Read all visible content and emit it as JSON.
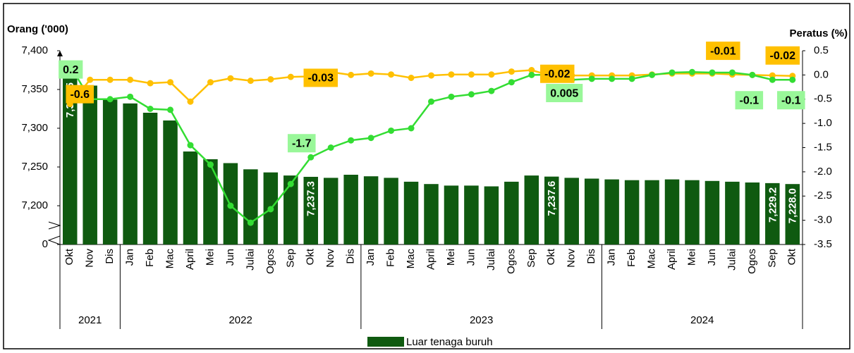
{
  "chart_data": {
    "type": "bar_line",
    "y_title": "Orang ('000)",
    "y2_title": "Peratus (%)",
    "categories": [
      "Okt",
      "Nov",
      "Dis",
      "Jan",
      "Feb",
      "Mac",
      "April",
      "Mei",
      "Jun",
      "Julai",
      "Ogos",
      "Sep",
      "Okt",
      "Nov",
      "Dis",
      "Jan",
      "Feb",
      "Mac",
      "April",
      "Mei",
      "Jun",
      "Julai",
      "Ogos",
      "Sep",
      "Okt",
      "Nov",
      "Dis",
      "Jan",
      "Feb",
      "Mac",
      "April",
      "Mei",
      "Jun",
      "Julai",
      "Ogos",
      "Sep",
      "Okt"
    ],
    "category_groups": [
      {
        "label": "2021",
        "count": 3
      },
      {
        "label": "2022",
        "count": 12
      },
      {
        "label": "2023",
        "count": 12
      },
      {
        "label": "2024",
        "count": 10
      }
    ],
    "ylim": [
      0,
      7400
    ],
    "yticks": [
      0,
      {
        "value": 7200,
        "label": "7,200"
      },
      {
        "value": 7250,
        "label": "7,250"
      },
      {
        "value": 7300,
        "label": "7,300"
      },
      {
        "value": 7350,
        "label": "7,350"
      },
      {
        "value": 7400,
        "label": "7,400"
      }
    ],
    "axis_break": true,
    "y2lim": [
      -3.5,
      0.5
    ],
    "y2ticks": [
      0.5,
      {
        "value": 0,
        "label": "0.0"
      },
      -0.5,
      {
        "value": -1,
        "label": "-1.0"
      },
      -1.5,
      {
        "value": -2,
        "label": "-2.0"
      },
      -2.5,
      {
        "value": -3,
        "label": "-3.0"
      },
      -3.5
    ],
    "legend": "bottom",
    "series": [
      {
        "name": "Luar tenaga buruh",
        "kind": "bar",
        "color": "#0f5a10",
        "values": [
          7364.5,
          7355,
          7337,
          7332,
          7320,
          7310,
          7270,
          7260,
          7255,
          7247,
          7243,
          7239,
          7237.3,
          7236,
          7240,
          7238,
          7236,
          7231,
          7228,
          7226,
          7226,
          7225,
          7231,
          7239,
          7237.6,
          7236,
          7235,
          7234,
          7233,
          7233,
          7234,
          7233,
          7232,
          7231,
          7230,
          7229.2,
          7228.0
        ],
        "value_labels": [
          "7,364.5",
          null,
          null,
          null,
          null,
          null,
          null,
          null,
          null,
          null,
          null,
          null,
          "7,237.3",
          null,
          null,
          null,
          null,
          null,
          null,
          null,
          null,
          null,
          null,
          null,
          "7,237.6",
          null,
          null,
          null,
          null,
          null,
          null,
          null,
          null,
          null,
          null,
          "7,229.2",
          "7,228.0"
        ]
      },
      {
        "kind": "line",
        "axis": "y2",
        "color": "#ffc000",
        "values": [
          -0.6,
          -0.1,
          -0.1,
          -0.1,
          -0.17,
          -0.15,
          -0.55,
          -0.15,
          -0.07,
          -0.12,
          -0.09,
          -0.04,
          -0.03,
          0.06,
          0.0,
          0.03,
          0.01,
          -0.06,
          -0.01,
          0.01,
          0.01,
          0.01,
          0.07,
          0.1,
          -0.02,
          -0.01,
          -0.01,
          -0.01,
          -0.01,
          0.01,
          0.03,
          0.03,
          0.03,
          0.01,
          0.0,
          -0.01,
          -0.02
        ],
        "value_labels": [
          "-0.6",
          null,
          null,
          null,
          null,
          null,
          null,
          null,
          null,
          null,
          null,
          null,
          "-0.03",
          null,
          null,
          null,
          null,
          null,
          null,
          null,
          null,
          null,
          null,
          null,
          "-0.02",
          null,
          null,
          null,
          null,
          null,
          null,
          null,
          null,
          null,
          null,
          "-0.01",
          "-0.02"
        ]
      },
      {
        "kind": "line",
        "axis": "y2",
        "color": "#33dd33",
        "values": [
          0.2,
          -0.5,
          -0.5,
          -0.45,
          -0.7,
          -0.72,
          -1.45,
          -1.85,
          -2.7,
          -3.05,
          -2.77,
          -2.25,
          -1.7,
          -1.5,
          -1.35,
          -1.3,
          -1.15,
          -1.1,
          -0.55,
          -0.45,
          -0.4,
          -0.33,
          -0.15,
          0.0,
          0.005,
          -0.1,
          -0.08,
          -0.08,
          -0.08,
          0.0,
          0.05,
          0.06,
          0.05,
          0.05,
          0.0,
          -0.1,
          -0.1
        ],
        "value_labels": [
          "0.2",
          null,
          null,
          null,
          null,
          null,
          null,
          null,
          null,
          null,
          null,
          null,
          "-1.7",
          null,
          null,
          null,
          null,
          null,
          null,
          null,
          null,
          null,
          null,
          null,
          "0.005",
          null,
          null,
          null,
          null,
          null,
          null,
          null,
          null,
          null,
          null,
          "-0.1",
          "-0.1"
        ]
      }
    ]
  }
}
